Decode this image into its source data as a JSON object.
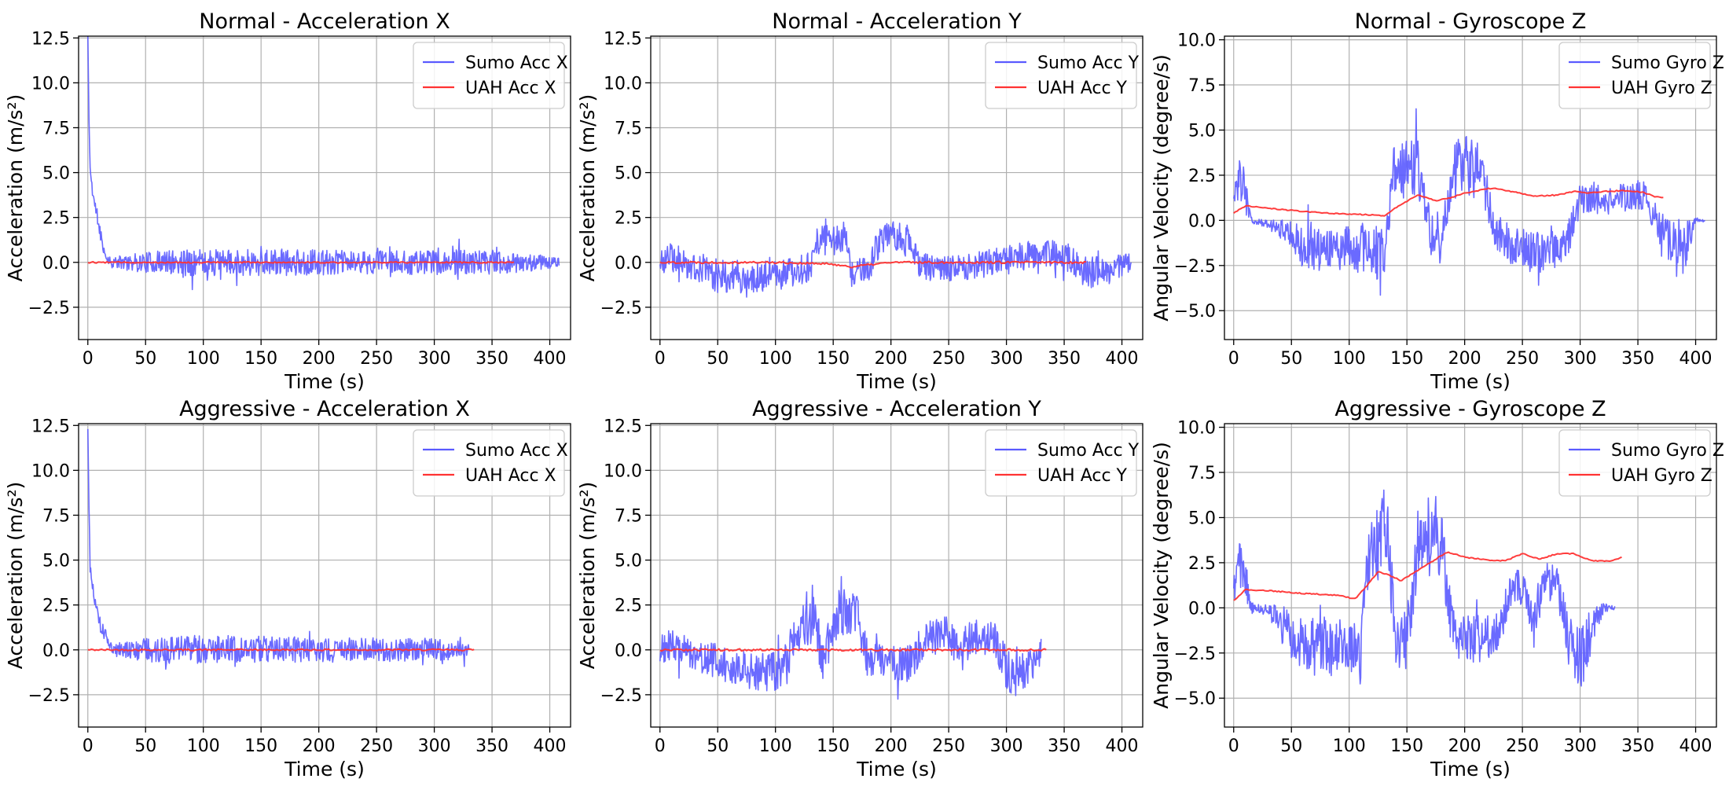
{
  "figure": {
    "background": "#ffffff",
    "grid": true,
    "legend_placement": "top-right"
  },
  "colors": {
    "sumo": "#5a5aff",
    "uah": "#ff3333"
  },
  "chart_data": [
    {
      "type": "line",
      "title": "Normal - Acceleration X",
      "xlabel": "Time (s)",
      "ylabel": "Acceleration (m/s²)",
      "xlim": [
        -8,
        418
      ],
      "ylim": [
        -4.3,
        12.6
      ],
      "xticks": [
        0,
        50,
        100,
        150,
        200,
        250,
        300,
        350,
        400
      ],
      "yticks": [
        -2.5,
        0.0,
        2.5,
        5.0,
        7.5,
        10.0,
        12.5
      ],
      "series": [
        {
          "name": "Sumo Acc X",
          "color": "#5a5aff",
          "style": "noisy",
          "noise_seed": 11,
          "x": [
            0,
            1,
            2,
            4,
            6,
            8,
            10,
            15,
            20,
            40,
            80,
            120,
            160,
            200,
            250,
            300,
            350,
            380,
            400,
            408
          ],
          "y": [
            12.6,
            8,
            5.2,
            4,
            3.2,
            2.6,
            1.9,
            0.4,
            0,
            0,
            0,
            0,
            0,
            0,
            0,
            0,
            0,
            0,
            0,
            0
          ],
          "amp": [
            0,
            0,
            0.3,
            0.4,
            0.4,
            0.4,
            0.4,
            0.3,
            0.3,
            0.5,
            0.75,
            0.75,
            0.75,
            0.7,
            0.65,
            0.7,
            0.7,
            0.55,
            0.35,
            0.2
          ]
        },
        {
          "name": "UAH Acc X",
          "color": "#ff3333",
          "style": "smooth",
          "noise_seed": 12,
          "x": [
            0,
            370
          ],
          "y": [
            0,
            0
          ],
          "amp": [
            0.04,
            0.04
          ]
        }
      ]
    },
    {
      "type": "line",
      "title": "Normal - Acceleration Y",
      "xlabel": "Time (s)",
      "ylabel": "Acceleration (m/s²)",
      "xlim": [
        -8,
        418
      ],
      "ylim": [
        -4.3,
        12.6
      ],
      "xticks": [
        0,
        50,
        100,
        150,
        200,
        250,
        300,
        350,
        400
      ],
      "yticks": [
        -2.5,
        0.0,
        2.5,
        5.0,
        7.5,
        10.0,
        12.5
      ],
      "series": [
        {
          "name": "Sumo Acc Y",
          "color": "#5a5aff",
          "style": "noisy",
          "noise_seed": 21,
          "x": [
            0,
            10,
            20,
            30,
            40,
            50,
            60,
            80,
            100,
            120,
            130,
            138,
            150,
            160,
            165,
            180,
            190,
            200,
            215,
            225,
            240,
            260,
            280,
            300,
            320,
            340,
            355,
            370,
            390,
            408
          ],
          "y": [
            0,
            0.3,
            0,
            -0.2,
            -0.5,
            -0.8,
            -0.7,
            -0.9,
            -0.7,
            -0.5,
            -0.3,
            1.4,
            1.2,
            1.6,
            -0.6,
            -0.4,
            1.2,
            1.4,
            1.2,
            -0.2,
            -0.4,
            -0.3,
            -0.1,
            0.3,
            0.4,
            0.5,
            0.2,
            -0.6,
            -0.4,
            0
          ],
          "amp": [
            0.8,
            0.9,
            0.8,
            0.8,
            1.0,
            1.2,
            0.9,
            0.9,
            0.9,
            0.9,
            0.9,
            0.9,
            0.9,
            0.9,
            0.8,
            0.8,
            0.9,
            0.9,
            0.9,
            0.8,
            0.7,
            0.7,
            0.8,
            0.8,
            0.8,
            0.8,
            0.8,
            0.9,
            0.8,
            0.5
          ]
        },
        {
          "name": "UAH Acc Y",
          "color": "#ff3333",
          "style": "smooth",
          "noise_seed": 22,
          "x": [
            0,
            100,
            150,
            165,
            200,
            370
          ],
          "y": [
            0,
            0,
            -0.1,
            -0.25,
            0,
            0
          ],
          "amp": [
            0.06,
            0.06,
            0.06,
            0.06,
            0.06,
            0.06
          ]
        }
      ]
    },
    {
      "type": "line",
      "title": "Normal - Gyroscope Z",
      "xlabel": "Time (s)",
      "ylabel": "Angular Velocity (degree/s)",
      "xlim": [
        -8,
        418
      ],
      "ylim": [
        -6.6,
        10.2
      ],
      "xticks": [
        0,
        50,
        100,
        150,
        200,
        250,
        300,
        350,
        400
      ],
      "yticks": [
        -5.0,
        -2.5,
        0.0,
        2.5,
        5.0,
        7.5,
        10.0
      ],
      "series": [
        {
          "name": "Sumo Gyro Z",
          "color": "#5a5aff",
          "style": "noisy",
          "noise_seed": 31,
          "x": [
            0,
            5,
            10,
            15,
            30,
            45,
            60,
            80,
            100,
            120,
            130,
            138,
            150,
            160,
            170,
            180,
            190,
            200,
            215,
            225,
            240,
            260,
            280,
            290,
            300,
            320,
            340,
            355,
            370,
            390,
            400,
            408
          ],
          "y": [
            1,
            2.5,
            1.5,
            0,
            -0.2,
            -0.5,
            -1.5,
            -1.6,
            -1.5,
            -1.7,
            -2,
            2.5,
            2.8,
            3,
            -0.8,
            -1.5,
            2.8,
            3,
            2.6,
            -0.5,
            -1.5,
            -1.8,
            -1.6,
            -1,
            1.2,
            1.1,
            1.3,
            1.4,
            -0.8,
            -1.5,
            0,
            0
          ],
          "amp": [
            0.6,
            1.2,
            1.2,
            0.2,
            0.2,
            0.8,
            1.2,
            1.2,
            1.2,
            1.5,
            1.5,
            1.5,
            1.6,
            1.8,
            1.2,
            1.2,
            1.6,
            1.8,
            1.5,
            1.0,
            1.2,
            1.2,
            1.0,
            1.0,
            0.8,
            0.8,
            0.8,
            0.9,
            1.2,
            1.5,
            0.2,
            0.1
          ]
        },
        {
          "name": "UAH Gyro Z",
          "color": "#ff3333",
          "style": "smooth",
          "noise_seed": 32,
          "x": [
            0,
            10,
            20,
            40,
            60,
            80,
            100,
            120,
            130,
            145,
            160,
            175,
            185,
            200,
            215,
            225,
            240,
            260,
            280,
            295,
            305,
            320,
            340,
            355,
            365,
            372
          ],
          "y": [
            0.4,
            0.8,
            0.75,
            0.6,
            0.5,
            0.4,
            0.35,
            0.3,
            0.25,
            0.9,
            1.4,
            1.1,
            1.2,
            1.5,
            1.7,
            1.8,
            1.6,
            1.35,
            1.4,
            1.6,
            1.5,
            1.6,
            1.65,
            1.55,
            1.3,
            1.25
          ],
          "amp": [
            0.03,
            0.03,
            0.03,
            0.03,
            0.03,
            0.03,
            0.03,
            0.03,
            0.03,
            0.03,
            0.03,
            0.03,
            0.03,
            0.03,
            0.03,
            0.03,
            0.03,
            0.03,
            0.03,
            0.03,
            0.03,
            0.03,
            0.03,
            0.03,
            0.03,
            0.03
          ]
        }
      ]
    },
    {
      "type": "line",
      "title": "Aggressive - Acceleration X",
      "xlabel": "Time (s)",
      "ylabel": "Acceleration (m/s²)",
      "xlim": [
        -8,
        418
      ],
      "ylim": [
        -4.3,
        12.6
      ],
      "xticks": [
        0,
        50,
        100,
        150,
        200,
        250,
        300,
        350,
        400
      ],
      "yticks": [
        -2.5,
        0.0,
        2.5,
        5.0,
        7.5,
        10.0,
        12.5
      ],
      "series": [
        {
          "name": "Sumo Acc X",
          "color": "#5a5aff",
          "style": "noisy",
          "noise_seed": 41,
          "x": [
            0,
            1,
            2,
            4,
            6,
            8,
            10,
            15,
            20,
            25,
            40,
            80,
            120,
            160,
            200,
            250,
            300,
            320,
            330
          ],
          "y": [
            12.3,
            8,
            4.6,
            3.6,
            2.8,
            2.2,
            1.6,
            0.8,
            0.2,
            0,
            0,
            0,
            0,
            0,
            0,
            0,
            0,
            0,
            0
          ],
          "amp": [
            0,
            0,
            0.3,
            0.4,
            0.4,
            0.4,
            0.4,
            0.4,
            0.3,
            0.4,
            0.6,
            0.8,
            0.8,
            0.75,
            0.7,
            0.7,
            0.65,
            0.6,
            0.6
          ]
        },
        {
          "name": "UAH Acc X",
          "color": "#ff3333",
          "style": "smooth",
          "noise_seed": 42,
          "x": [
            0,
            335
          ],
          "y": [
            0,
            0
          ],
          "amp": [
            0.05,
            0.05
          ]
        }
      ]
    },
    {
      "type": "line",
      "title": "Aggressive - Acceleration Y",
      "xlabel": "Time (s)",
      "ylabel": "Acceleration (m/s²)",
      "xlim": [
        -8,
        418
      ],
      "ylim": [
        -4.3,
        12.6
      ],
      "xticks": [
        0,
        50,
        100,
        150,
        200,
        250,
        300,
        350,
        400
      ],
      "yticks": [
        -2.5,
        0.0,
        2.5,
        5.0,
        7.5,
        10.0,
        12.5
      ],
      "series": [
        {
          "name": "Sumo Acc Y",
          "color": "#5a5aff",
          "style": "noisy",
          "noise_seed": 51,
          "x": [
            0,
            10,
            20,
            30,
            40,
            50,
            60,
            80,
            100,
            110,
            118,
            130,
            135,
            140,
            155,
            170,
            180,
            190,
            200,
            210,
            220,
            230,
            240,
            250,
            260,
            270,
            290,
            300,
            310,
            325,
            330
          ],
          "y": [
            0,
            0.3,
            0.2,
            -0.5,
            -0.5,
            -0.6,
            -1,
            -1.2,
            -1.2,
            -0.8,
            1.5,
            1.6,
            1.8,
            -0.8,
            2.2,
            2,
            -0.6,
            -0.6,
            -0.7,
            -0.9,
            -0.6,
            0.5,
            0.8,
            1,
            -0.4,
            0.8,
            0.6,
            -1.2,
            -1.5,
            -0.6,
            0
          ],
          "amp": [
            0.9,
            1.0,
            0.9,
            0.9,
            0.9,
            1.0,
            1.1,
            1.1,
            1.1,
            1.2,
            1.3,
            1.3,
            1.4,
            1.1,
            1.3,
            1.2,
            1.0,
            0.9,
            1.0,
            1.0,
            1.0,
            1.0,
            1.0,
            1.1,
            1.0,
            1.0,
            1.0,
            1.3,
            1.1,
            1.0,
            0.8
          ]
        },
        {
          "name": "UAH Acc Y",
          "color": "#ff3333",
          "style": "smooth",
          "noise_seed": 52,
          "x": [
            0,
            335
          ],
          "y": [
            0,
            0
          ],
          "amp": [
            0.06,
            0.06
          ]
        }
      ]
    },
    {
      "type": "line",
      "title": "Aggressive - Gyroscope Z",
      "xlabel": "Time (s)",
      "ylabel": "Angular Velocity (degree/s)",
      "xlim": [
        -8,
        418
      ],
      "ylim": [
        -6.6,
        10.2
      ],
      "xticks": [
        0,
        50,
        100,
        150,
        200,
        250,
        300,
        350,
        400
      ],
      "yticks": [
        -5.0,
        -2.5,
        0.0,
        2.5,
        5.0,
        7.5,
        10.0
      ],
      "series": [
        {
          "name": "Sumo Gyro Z",
          "color": "#5a5aff",
          "style": "noisy",
          "noise_seed": 61,
          "x": [
            0,
            5,
            10,
            15,
            30,
            40,
            50,
            60,
            80,
            100,
            110,
            118,
            125,
            132,
            140,
            150,
            160,
            170,
            180,
            190,
            200,
            210,
            220,
            230,
            240,
            250,
            260,
            270,
            280,
            290,
            300,
            310,
            320,
            330
          ],
          "y": [
            1,
            2.5,
            1.5,
            0,
            -0.1,
            -0.8,
            -1.5,
            -2,
            -2.2,
            -2.2,
            -2.5,
            3.2,
            3.5,
            5,
            -1.8,
            -1.8,
            4,
            4.2,
            3.5,
            -1.5,
            -1.5,
            -1.8,
            -1.5,
            -1.2,
            1,
            1.2,
            -0.8,
            1.5,
            1.3,
            -1.8,
            -2.8,
            -1.2,
            0,
            0
          ],
          "amp": [
            0.8,
            1.2,
            1.2,
            0.3,
            0.3,
            1.0,
            1.3,
            1.6,
            1.7,
            1.8,
            1.8,
            2.0,
            2.0,
            2.2,
            1.6,
            1.6,
            2.0,
            2.0,
            1.8,
            1.4,
            1.4,
            1.4,
            1.3,
            1.2,
            1.0,
            1.1,
            1.0,
            1.1,
            1.1,
            1.4,
            1.8,
            1.2,
            0.3,
            0.1
          ]
        },
        {
          "name": "UAH Gyro Z",
          "color": "#ff3333",
          "style": "smooth",
          "noise_seed": 62,
          "x": [
            0,
            10,
            30,
            60,
            90,
            105,
            115,
            125,
            135,
            145,
            160,
            175,
            185,
            200,
            220,
            235,
            250,
            265,
            280,
            295,
            310,
            325,
            337
          ],
          "y": [
            0.4,
            1.0,
            0.95,
            0.8,
            0.7,
            0.5,
            1.2,
            2.0,
            1.8,
            1.5,
            2.1,
            2.7,
            3.1,
            2.8,
            2.65,
            2.6,
            3.0,
            2.7,
            3.0,
            3.0,
            2.6,
            2.6,
            2.8
          ],
          "amp": [
            0.03,
            0.03,
            0.03,
            0.03,
            0.03,
            0.03,
            0.03,
            0.03,
            0.03,
            0.03,
            0.03,
            0.03,
            0.03,
            0.03,
            0.03,
            0.03,
            0.03,
            0.03,
            0.03,
            0.03,
            0.03,
            0.03,
            0.03
          ]
        }
      ]
    }
  ]
}
